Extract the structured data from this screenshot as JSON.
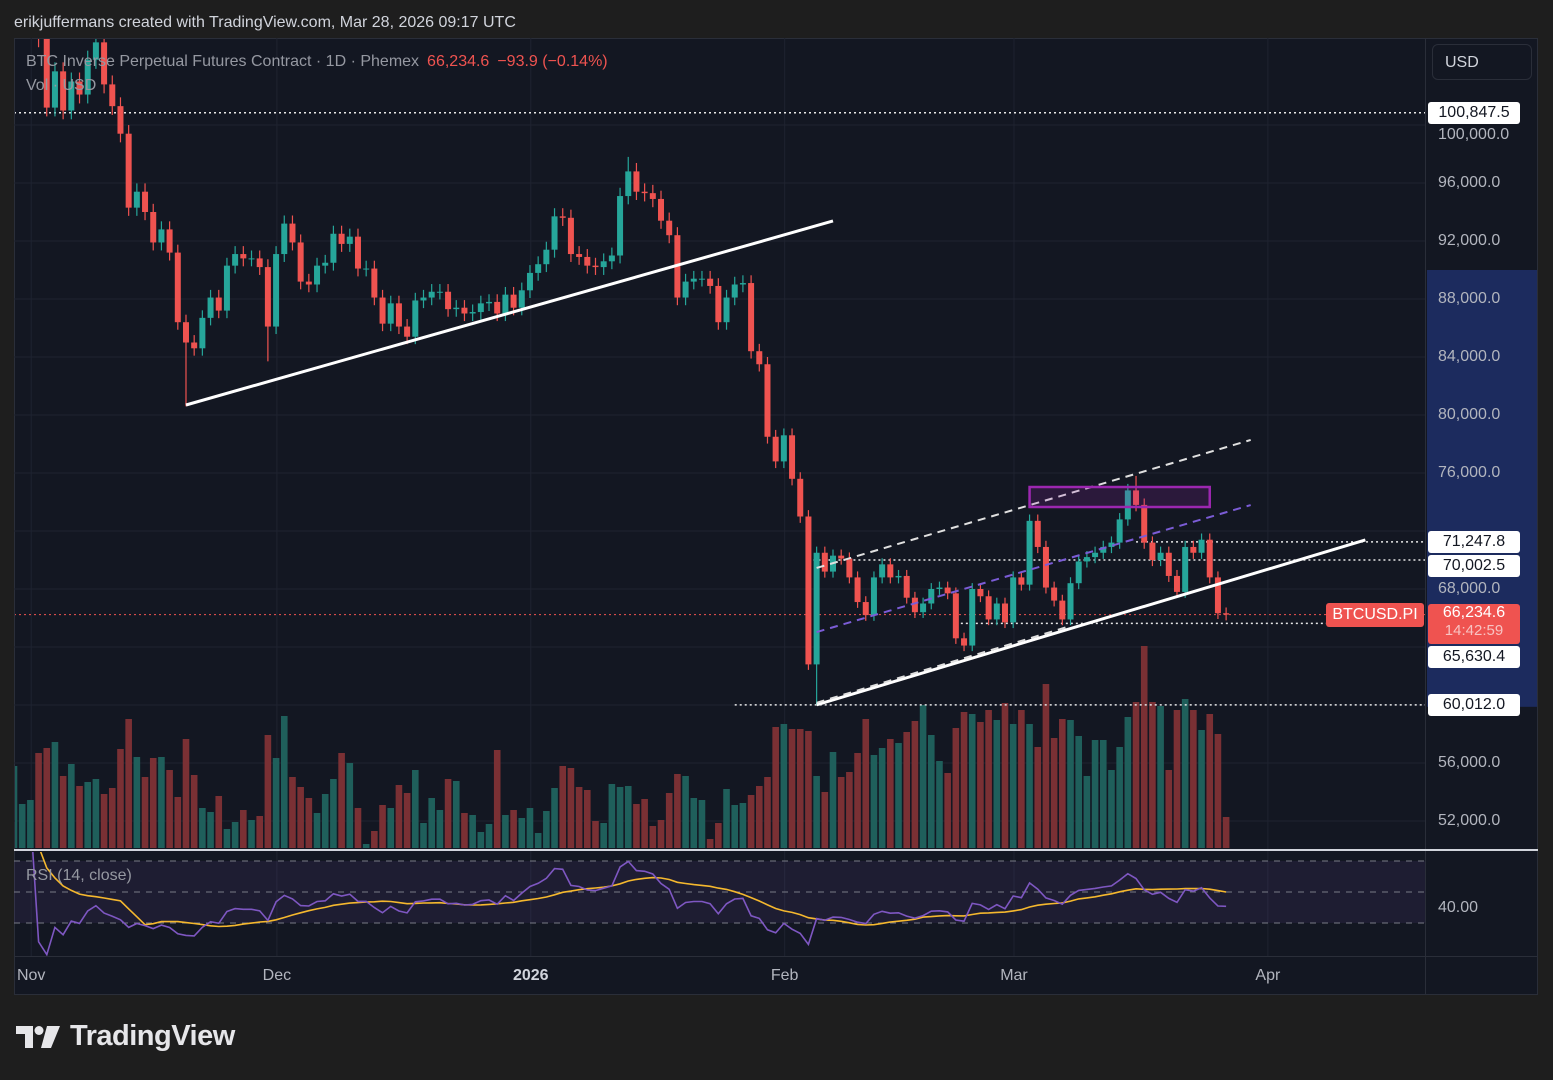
{
  "credit": "erikjuffermans created with TradingView.com, Mar 28, 2026 09:17 UTC",
  "legend": {
    "title": "BTC Inverse Perpetual Futures Contract · 1D · Phemex",
    "last": "66,234.6",
    "change": "−93.9 (−0.14%)",
    "volume_label": "Vol · USD"
  },
  "currency_button": "USD",
  "symbol_label": "BTCUSD.PI",
  "countdown": "14:42:59",
  "logo_text": "TradingView",
  "colors": {
    "up": "#26a69a",
    "down": "#ef5350",
    "vol_up": "#1f5f5b",
    "vol_down": "#7a3034",
    "rsi": "#7e57c2",
    "rsi_ma": "#f5b82e",
    "drawing_white": "#ffffff",
    "drawing_purple": "#9c27b0",
    "axis_highlight": "#1c2b5e"
  },
  "chart_data": {
    "type": "candlestick",
    "symbol": "BTCUSD.PI",
    "interval": "1D",
    "start_date": "2025-10-31",
    "first_open": 109300,
    "close": [
      109600,
      110100,
      110600,
      106000,
      101200,
      103700,
      101000,
      103000,
      102100,
      104500,
      105700,
      102800,
      101300,
      99400,
      94300,
      95400,
      94000,
      91900,
      92800,
      91200,
      86400,
      85000,
      84600,
      86700,
      88100,
      87200,
      90300,
      91100,
      90800,
      90800,
      90200,
      86100,
      91100,
      93200,
      91900,
      89200,
      89000,
      90300,
      90500,
      92500,
      91800,
      92300,
      90100,
      90100,
      88100,
      86300,
      87700,
      86100,
      85400,
      87900,
      88100,
      88500,
      88500,
      87300,
      87400,
      87000,
      87100,
      87700,
      87800,
      87000,
      88300,
      87400,
      88600,
      89800,
      90400,
      91400,
      93700,
      93600,
      91100,
      90900,
      90300,
      90200,
      90600,
      91000,
      95100,
      96800,
      95400,
      95300,
      94900,
      93400,
      92400,
      88100,
      89200,
      89400,
      89400,
      88900,
      86400,
      88100,
      89000,
      89100,
      84400,
      83500,
      78500,
      76800,
      78600,
      75600,
      73000,
      62800,
      70500,
      69200,
      70300,
      70100,
      68800,
      67100,
      66200,
      68800,
      69700,
      68800,
      68900,
      67400,
      66400,
      67000,
      68000,
      68100,
      67700,
      64600,
      64100,
      68000,
      67500,
      65900,
      67000,
      65700,
      68800,
      68300,
      72700,
      70900,
      68100,
      67200,
      65900,
      68400,
      69900,
      70200,
      70500,
      70900,
      71200,
      72800,
      74800,
      73800,
      71200,
      70000,
      70500,
      68900,
      67800,
      70900,
      70500,
      71400,
      68800,
      66328.5,
      66234.6
    ],
    "wick_extremes": [
      {
        "date": "2025-11-03",
        "high": 111200
      },
      {
        "date": "2025-11-21",
        "low": 80600
      },
      {
        "date": "2025-12-01",
        "low": 83700
      },
      {
        "date": "2026-01-14",
        "high": 97800
      },
      {
        "date": "2026-02-06",
        "low": 60012
      },
      {
        "date": "2026-03-17",
        "high": 75800
      }
    ],
    "volume_relative": [
      82,
      44,
      48,
      95,
      100,
      106,
      72,
      84,
      62,
      66,
      69,
      54,
      60,
      99,
      129,
      91,
      71,
      90,
      91,
      78,
      51,
      109,
      73,
      40,
      36,
      52,
      19,
      26,
      38,
      28,
      32,
      113,
      90,
      132,
      71,
      61,
      50,
      35,
      54,
      69,
      95,
      85,
      40,
      4,
      17,
      43,
      40,
      63,
      55,
      78,
      25,
      50,
      38,
      69,
      67,
      35,
      33,
      16,
      24,
      98,
      33,
      38,
      30,
      40,
      15,
      37,
      60,
      82,
      80,
      61,
      58,
      27,
      25,
      64,
      61,
      62,
      44,
      49,
      22,
      28,
      55,
      74,
      72,
      50,
      48,
      9,
      25,
      59,
      43,
      45,
      53,
      62,
      71,
      121,
      124,
      119,
      119,
      117,
      72,
      56,
      96,
      71,
      76,
      95,
      129,
      93,
      100,
      109,
      105,
      116,
      127,
      143,
      113,
      87,
      75,
      120,
      136,
      134,
      126,
      138,
      128,
      145,
      124,
      138,
      124,
      101,
      164,
      110,
      129,
      128,
      112,
      72,
      108,
      108,
      78,
      101,
      131,
      146,
      202,
      146,
      142,
      78,
      138,
      149,
      138,
      118,
      134,
      114,
      31
    ],
    "price_axis": {
      "ticks": [
        {
          "value": 100000,
          "label": "100,000.0"
        },
        {
          "value": 96000,
          "label": "96,000.0"
        },
        {
          "value": 92000,
          "label": "92,000.0"
        },
        {
          "value": 88000,
          "label": "88,000.0"
        },
        {
          "value": 84000,
          "label": "84,000.0"
        },
        {
          "value": 80000,
          "label": "80,000.0"
        },
        {
          "value": 76000,
          "label": "76,000.0"
        },
        {
          "value": 72000,
          "label": ""
        },
        {
          "value": 68000,
          "label": "68,000.0"
        },
        {
          "value": 64000,
          "label": ""
        },
        {
          "value": 60000,
          "label": ""
        },
        {
          "value": 56000,
          "label": "56,000.0"
        },
        {
          "value": 52000,
          "label": "52,000.0"
        }
      ],
      "highlight_range": [
        60012,
        90000
      ]
    },
    "time_axis": [
      {
        "date": "2025-11-01",
        "label": "Nov"
      },
      {
        "date": "2025-12-01",
        "label": "Dec"
      },
      {
        "date": "2026-01-01",
        "label": "2026",
        "bold": true
      },
      {
        "date": "2026-02-01",
        "label": "Feb"
      },
      {
        "date": "2026-03-01",
        "label": "Mar"
      },
      {
        "date": "2026-04-01",
        "label": "Apr"
      }
    ],
    "horizontal_levels": [
      {
        "price": 100847.5,
        "label": "100,847.5",
        "from": "2025-10-31"
      },
      {
        "price": 71247.8,
        "label": "71,247.8",
        "from": "2026-03-17"
      },
      {
        "price": 70002.5,
        "label": "70,002.5",
        "from": "2026-02-05"
      },
      {
        "price": 65630.4,
        "label": "65,630.4",
        "from": "2026-02-23"
      },
      {
        "price": 60012.0,
        "label": "60,012.0",
        "from": "2026-01-27"
      }
    ],
    "last_price": 66234.6,
    "drawings": [
      {
        "type": "trendline",
        "style": "solid",
        "color": "#ffffff",
        "from": {
          "date": "2025-11-21",
          "price": 80690
        },
        "to": {
          "date": "2026-02-08",
          "price": 93380
        }
      },
      {
        "type": "trendline",
        "style": "solid",
        "color": "#ffffff",
        "from": {
          "date": "2026-02-06",
          "price": 60012
        },
        "to": {
          "date": "2026-04-14",
          "price": 71380
        }
      },
      {
        "type": "trendline",
        "style": "dashed",
        "color": "#e0e0e0",
        "from": {
          "date": "2026-02-06",
          "price": 69450
        },
        "to": {
          "date": "2026-03-31",
          "price": 78280
        }
      },
      {
        "type": "trendline",
        "style": "dashed",
        "color": "#7b5cd6",
        "from": {
          "date": "2026-02-06",
          "price": 65030
        },
        "to": {
          "date": "2026-03-31",
          "price": 73790
        }
      },
      {
        "type": "trendline",
        "style": "dashed",
        "color": "#e0e0e0",
        "from": {
          "date": "2026-02-06",
          "price": 60150
        },
        "to": {
          "date": "2026-03-09",
          "price": 65450
        }
      },
      {
        "type": "rectangle",
        "color": "#9c27b0",
        "from": {
          "date": "2026-03-04",
          "price": 75034
        },
        "to": {
          "date": "2026-03-26",
          "price": 73655
        }
      }
    ],
    "rsi": {
      "label": "RSI (14, close)",
      "length": 14,
      "ma_length": 14,
      "levels": [
        70,
        50,
        30
      ],
      "current_label": "40.00"
    }
  }
}
